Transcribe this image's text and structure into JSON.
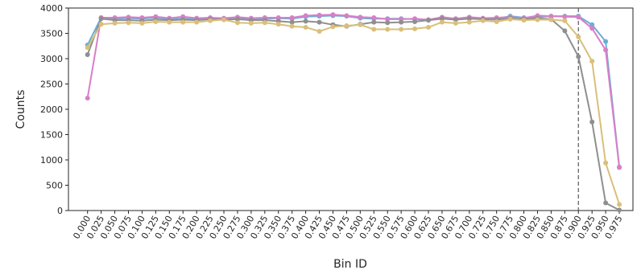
{
  "chart_data": {
    "type": "line",
    "xlabel": "Bin ID",
    "ylabel": "Counts",
    "ylim": [
      0,
      4000
    ],
    "xlim": [
      -0.035,
      1.0
    ],
    "y_ticks": [
      0,
      500,
      1000,
      1500,
      2000,
      2500,
      3000,
      3500,
      4000
    ],
    "x": [
      0.0,
      0.025,
      0.05,
      0.075,
      0.1,
      0.125,
      0.15,
      0.175,
      0.2,
      0.225,
      0.25,
      0.275,
      0.3,
      0.325,
      0.35,
      0.375,
      0.4,
      0.425,
      0.45,
      0.475,
      0.5,
      0.525,
      0.55,
      0.575,
      0.6,
      0.625,
      0.65,
      0.675,
      0.7,
      0.725,
      0.75,
      0.775,
      0.8,
      0.825,
      0.85,
      0.875,
      0.9,
      0.925,
      0.95,
      0.975
    ],
    "x_tick_labels": [
      "0.000",
      "0.025",
      "0.050",
      "0.075",
      "0.100",
      "0.125",
      "0.150",
      "0.175",
      "0.200",
      "0.225",
      "0.250",
      "0.275",
      "0.300",
      "0.325",
      "0.350",
      "0.375",
      "0.400",
      "0.425",
      "0.450",
      "0.475",
      "0.500",
      "0.525",
      "0.550",
      "0.575",
      "0.600",
      "0.625",
      "0.650",
      "0.675",
      "0.700",
      "0.725",
      "0.750",
      "0.775",
      "0.800",
      "0.825",
      "0.850",
      "0.875",
      "0.900",
      "0.925",
      "0.950",
      "0.975"
    ],
    "vline": {
      "x": 0.9,
      "style": "dashed",
      "color": "#666666"
    },
    "grid": false,
    "legend": "none",
    "series": [
      {
        "color": "#6aaed6",
        "values": [
          3270,
          3810,
          3790,
          3800,
          3790,
          3810,
          3780,
          3790,
          3780,
          3790,
          3780,
          3790,
          3780,
          3790,
          3800,
          3790,
          3830,
          3840,
          3850,
          3840,
          3800,
          3790,
          3790,
          3790,
          3780,
          3760,
          3790,
          3780,
          3800,
          3790,
          3790,
          3840,
          3810,
          3820,
          3840,
          3840,
          3840,
          3670,
          3340,
          860
        ]
      },
      {
        "color": "#d87fc8",
        "values": [
          2220,
          3810,
          3810,
          3820,
          3810,
          3830,
          3800,
          3830,
          3800,
          3810,
          3800,
          3820,
          3800,
          3810,
          3810,
          3810,
          3850,
          3860,
          3870,
          3850,
          3820,
          3810,
          3780,
          3780,
          3790,
          3770,
          3820,
          3790,
          3820,
          3800,
          3810,
          3820,
          3800,
          3850,
          3840,
          3830,
          3820,
          3600,
          3170,
          850
        ]
      },
      {
        "color": "#8f8f8f",
        "values": [
          3080,
          3790,
          3760,
          3760,
          3750,
          3770,
          3760,
          3770,
          3760,
          3780,
          3770,
          3780,
          3760,
          3760,
          3740,
          3720,
          3740,
          3720,
          3670,
          3640,
          3680,
          3720,
          3710,
          3720,
          3730,
          3760,
          3790,
          3770,
          3790,
          3780,
          3770,
          3800,
          3780,
          3800,
          3780,
          3550,
          3040,
          1750,
          150,
          10
        ]
      },
      {
        "color": "#d9bf7a",
        "values": [
          3220,
          3680,
          3700,
          3710,
          3700,
          3730,
          3720,
          3720,
          3720,
          3750,
          3770,
          3710,
          3700,
          3710,
          3680,
          3640,
          3620,
          3540,
          3630,
          3650,
          3670,
          3580,
          3580,
          3580,
          3590,
          3620,
          3720,
          3700,
          3720,
          3750,
          3730,
          3780,
          3760,
          3770,
          3770,
          3750,
          3430,
          2950,
          940,
          120
        ]
      }
    ]
  }
}
